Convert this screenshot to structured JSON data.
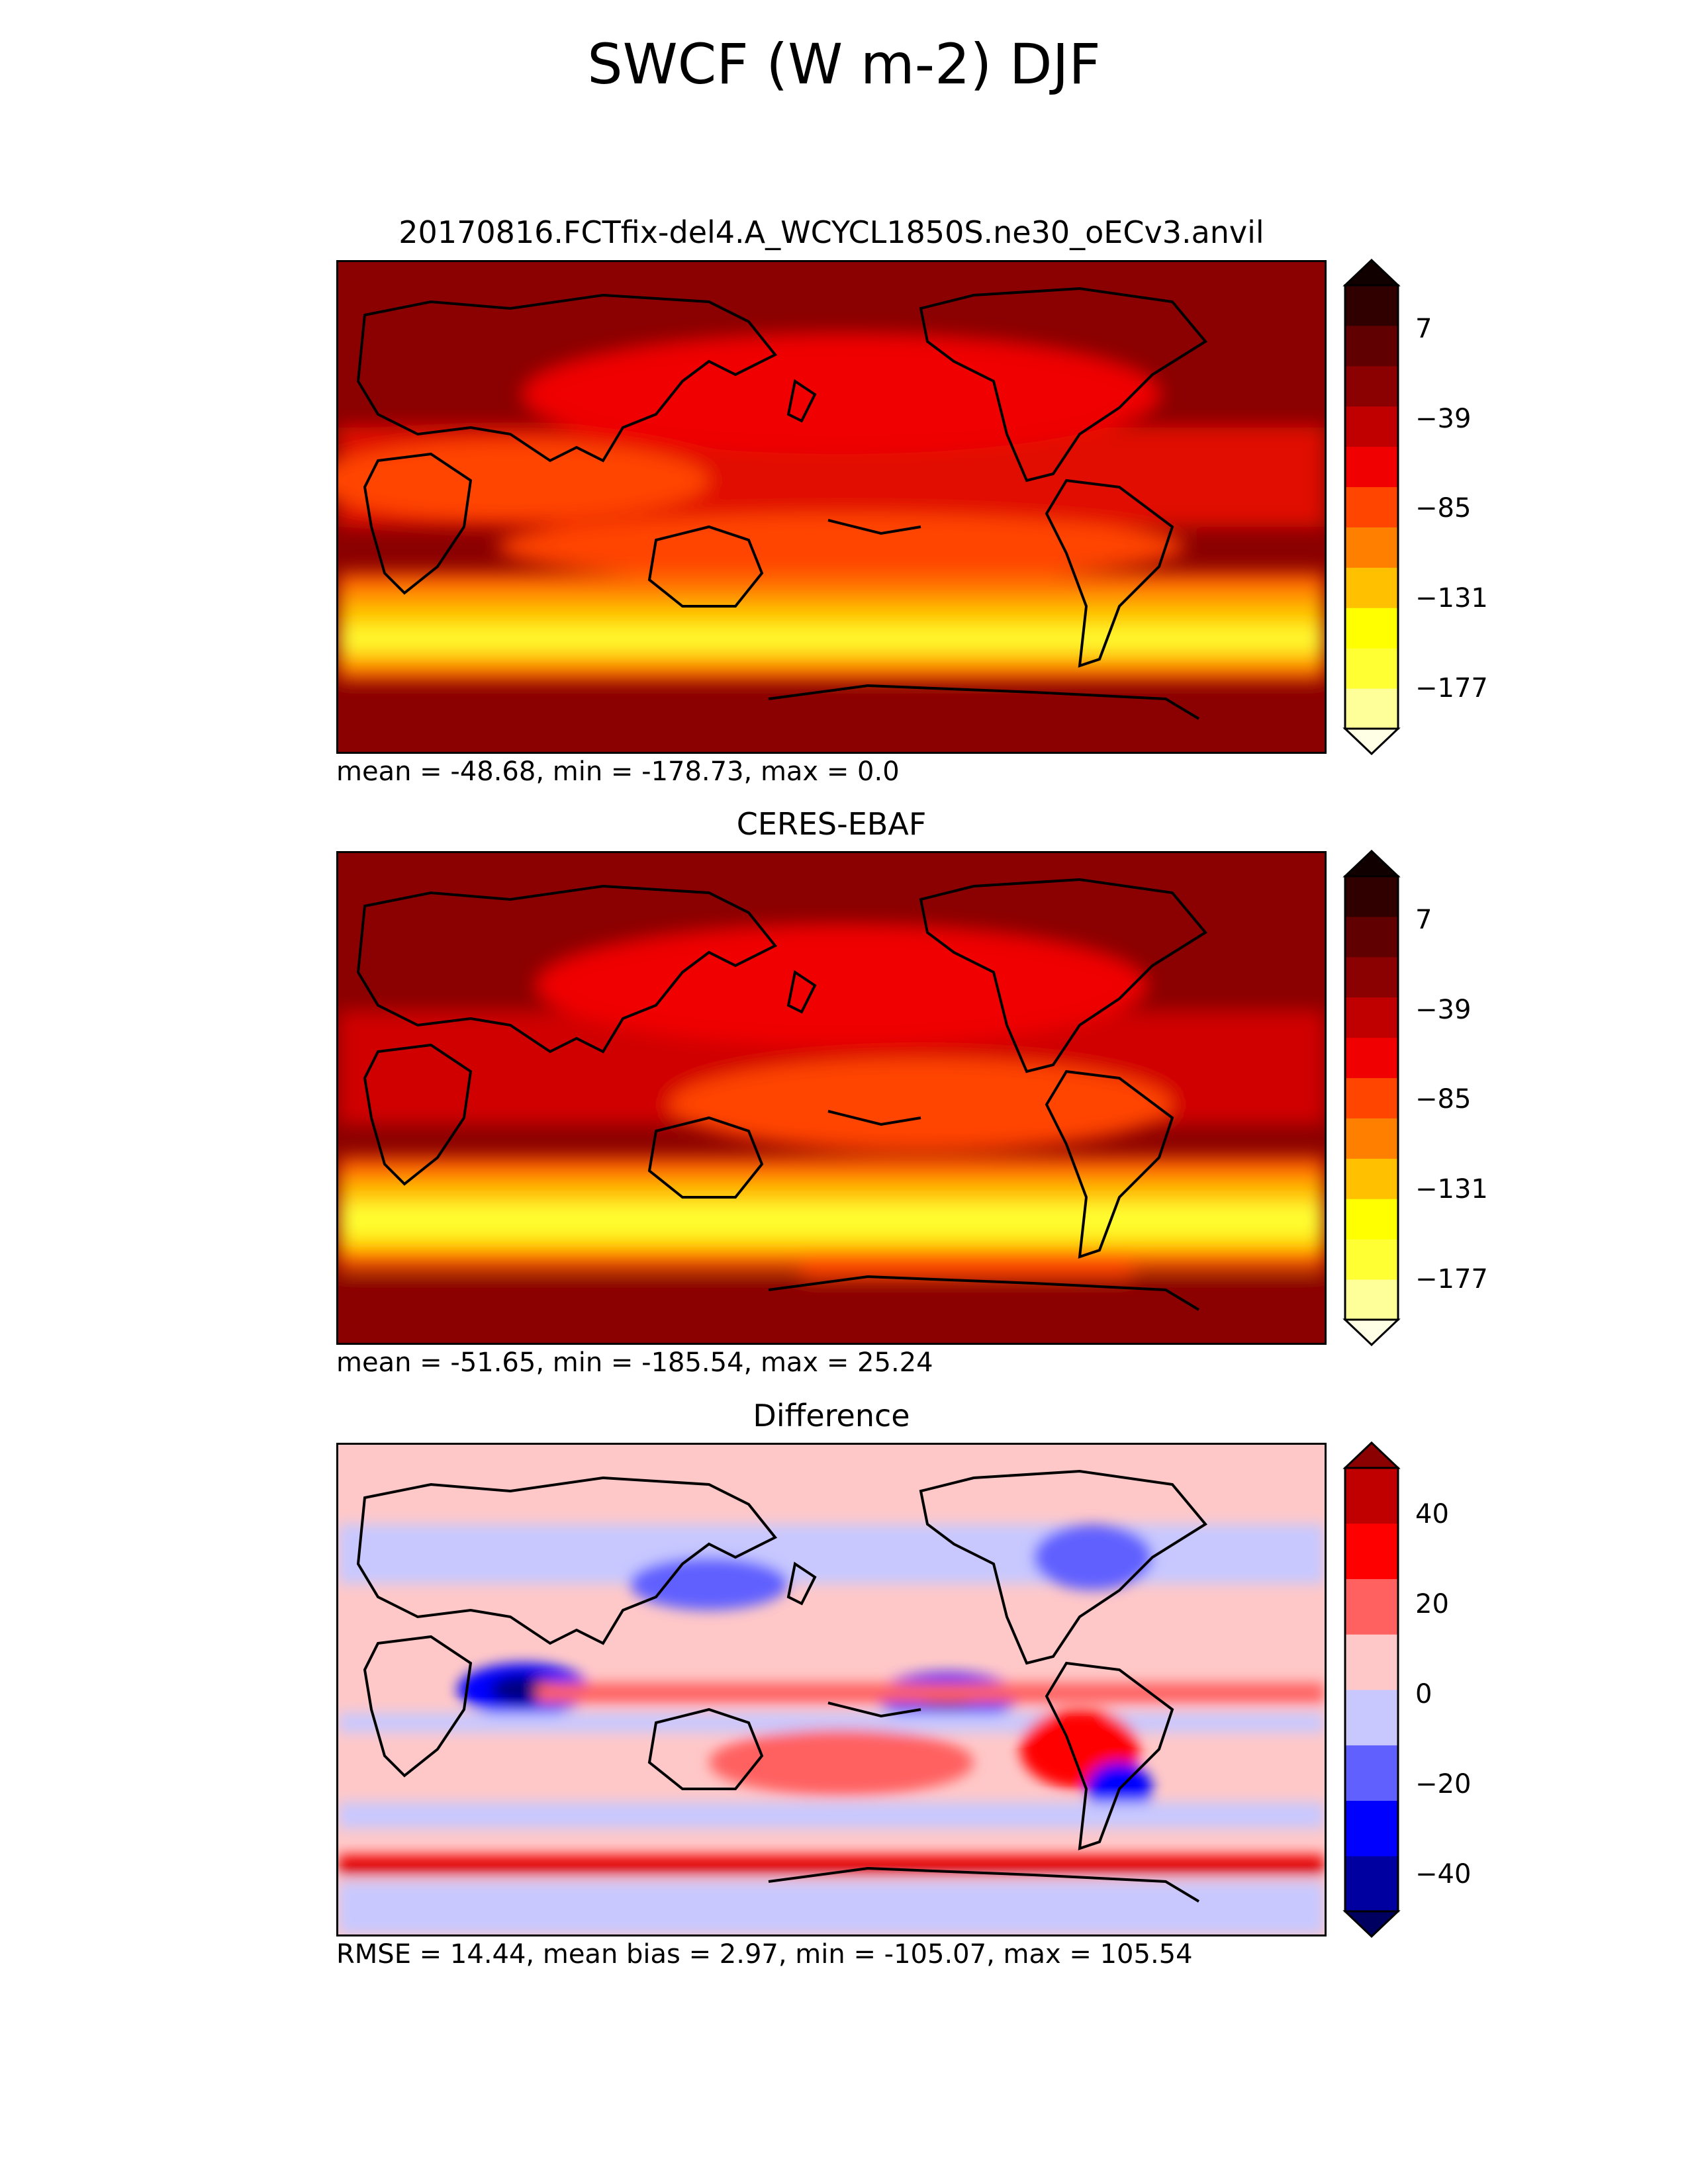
{
  "title": "SWCF (W m-2) DJF",
  "panels": [
    {
      "id": "test",
      "title": "20170816.FCTfix-del4.A_WCYCL1850S.ne30_oECv3.anvil",
      "stats": "mean = -48.68, min = -178.73, max = 0.0",
      "colorbar": {
        "ticks": [
          "7",
          "−39",
          "−85",
          "−131",
          "−177"
        ],
        "colors": [
          "#ffffe6",
          "#ffff99",
          "#ffff33",
          "#ffff00",
          "#ffc000",
          "#ff8000",
          "#ff4500",
          "#f00000",
          "#c00000",
          "#8b0000",
          "#600000",
          "#300000",
          "#100000"
        ]
      },
      "chart_data": {
        "type": "heatmap",
        "title": "20170816.FCTfix-del4.A_WCYCL1850S.ne30_oECv3.anvil",
        "variable": "SWCF (W m-2)",
        "season": "DJF",
        "mean": -48.68,
        "min": -178.73,
        "max": 0.0,
        "colorbar_ticks": [
          7,
          -39,
          -85,
          -131,
          -177
        ],
        "colormap": "hot-reversed"
      }
    },
    {
      "id": "reference",
      "title": "CERES-EBAF",
      "stats": "mean = -51.65, min = -185.54, max = 25.24",
      "colorbar": {
        "ticks": [
          "7",
          "−39",
          "−85",
          "−131",
          "−177"
        ],
        "colors": [
          "#ffffe6",
          "#ffff99",
          "#ffff33",
          "#ffff00",
          "#ffc000",
          "#ff8000",
          "#ff4500",
          "#f00000",
          "#c00000",
          "#8b0000",
          "#600000",
          "#300000",
          "#100000"
        ]
      },
      "chart_data": {
        "type": "heatmap",
        "title": "CERES-EBAF",
        "variable": "SWCF (W m-2)",
        "season": "DJF",
        "mean": -51.65,
        "min": -185.54,
        "max": 25.24,
        "colorbar_ticks": [
          7,
          -39,
          -85,
          -131,
          -177
        ],
        "colormap": "hot-reversed"
      }
    },
    {
      "id": "difference",
      "title": "Difference",
      "stats": "RMSE = 14.44, mean bias = 2.97, min = -105.07, max = 105.54",
      "colorbar": {
        "ticks": [
          "40",
          "20",
          "0",
          "−20",
          "−40"
        ],
        "colors": [
          "#000060",
          "#0000a0",
          "#0000ff",
          "#6060ff",
          "#c8c8ff",
          "#ffc8c8",
          "#ff6060",
          "#ff0000",
          "#c00000",
          "#8b0000"
        ]
      },
      "chart_data": {
        "type": "heatmap",
        "title": "Difference",
        "variable": "SWCF (W m-2)",
        "season": "DJF",
        "rmse": 14.44,
        "mean_bias": 2.97,
        "min": -105.07,
        "max": 105.54,
        "colorbar_ticks": [
          40,
          20,
          0,
          -20,
          -40
        ],
        "colormap": "blue-white-red"
      }
    }
  ]
}
